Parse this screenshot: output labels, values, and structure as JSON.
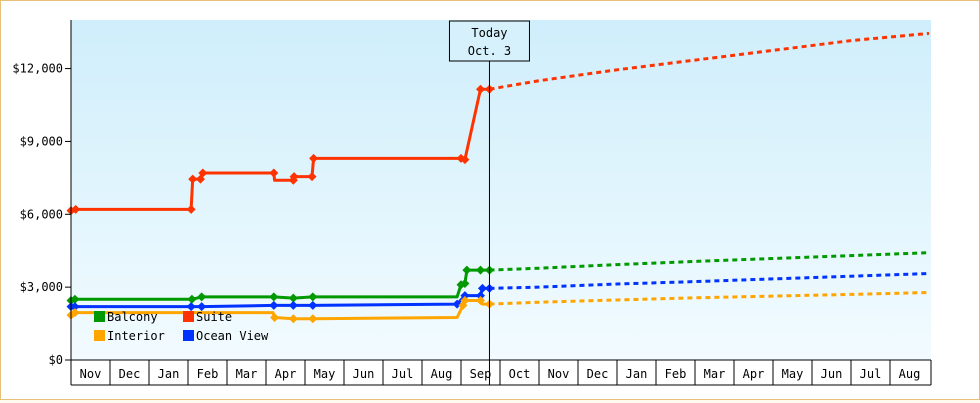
{
  "chart_data": {
    "type": "line",
    "title": "",
    "xlabel": "",
    "ylabel": "",
    "ylim": [
      0,
      14000
    ],
    "y_ticks": [
      {
        "value": 0,
        "label": "$0"
      },
      {
        "value": 3000,
        "label": "$3,000"
      },
      {
        "value": 6000,
        "label": "$6,000"
      },
      {
        "value": 9000,
        "label": "$9,000"
      },
      {
        "value": 12000,
        "label": "$12,000"
      }
    ],
    "x_months": [
      "Nov",
      "Dec",
      "Jan",
      "Feb",
      "Mar",
      "Apr",
      "May",
      "Jun",
      "Jul",
      "Aug",
      "Sep",
      "Oct",
      "Nov",
      "Dec",
      "Jan",
      "Feb",
      "Mar",
      "Apr",
      "May",
      "Jun",
      "Jul",
      "Aug"
    ],
    "today_marker": {
      "line1": "Today",
      "line2": "Oct. 3",
      "x": 10.73
    },
    "legend": {
      "placement": "bottom-left",
      "entries": [
        "Balcony",
        "Suite",
        "Interior",
        "Ocean View"
      ]
    },
    "series": [
      {
        "name": "Suite",
        "color": "#ff3300",
        "points": [
          [
            0.0,
            6150
          ],
          [
            0.12,
            6200
          ],
          [
            3.08,
            6200
          ],
          [
            3.12,
            7450
          ],
          [
            3.32,
            7450
          ],
          [
            3.38,
            7700
          ],
          [
            5.2,
            7700
          ],
          [
            5.22,
            7400
          ],
          [
            5.7,
            7400
          ],
          [
            5.72,
            7550
          ],
          [
            6.18,
            7550
          ],
          [
            6.22,
            8300
          ],
          [
            10.0,
            8300
          ],
          [
            10.1,
            8250
          ],
          [
            10.5,
            11150
          ],
          [
            10.73,
            11150
          ]
        ],
        "projection": [
          [
            10.73,
            11150
          ],
          [
            12,
            11500
          ],
          [
            14,
            11950
          ],
          [
            16,
            12350
          ],
          [
            18,
            12750
          ],
          [
            20,
            13150
          ],
          [
            22,
            13450
          ]
        ]
      },
      {
        "name": "Balcony",
        "color": "#009900",
        "points": [
          [
            0.0,
            2450
          ],
          [
            0.1,
            2500
          ],
          [
            3.1,
            2500
          ],
          [
            3.35,
            2600
          ],
          [
            5.2,
            2600
          ],
          [
            5.7,
            2550
          ],
          [
            6.2,
            2600
          ],
          [
            9.9,
            2600
          ],
          [
            10.0,
            3100
          ],
          [
            10.1,
            3150
          ],
          [
            10.15,
            3700
          ],
          [
            10.73,
            3700
          ]
        ],
        "projection": [
          [
            10.73,
            3700
          ],
          [
            12,
            3780
          ],
          [
            14,
            3930
          ],
          [
            16,
            4060
          ],
          [
            18,
            4180
          ],
          [
            20,
            4300
          ],
          [
            22,
            4420
          ]
        ]
      },
      {
        "name": "Ocean View",
        "color": "#0033ff",
        "points": [
          [
            0.0,
            2200
          ],
          [
            0.1,
            2200
          ],
          [
            3.08,
            2200
          ],
          [
            3.35,
            2200
          ],
          [
            5.2,
            2250
          ],
          [
            5.7,
            2250
          ],
          [
            6.2,
            2250
          ],
          [
            9.9,
            2300
          ],
          [
            10.1,
            2650
          ],
          [
            10.5,
            2650
          ],
          [
            10.55,
            2950
          ],
          [
            10.73,
            2950
          ]
        ],
        "projection": [
          [
            10.73,
            2950
          ],
          [
            12,
            3000
          ],
          [
            14,
            3130
          ],
          [
            16,
            3230
          ],
          [
            18,
            3340
          ],
          [
            20,
            3450
          ],
          [
            22,
            3560
          ]
        ]
      },
      {
        "name": "Interior",
        "color": "#ffa500",
        "points": [
          [
            0.0,
            1850
          ],
          [
            0.1,
            1950
          ],
          [
            3.1,
            1950
          ],
          [
            5.18,
            1950
          ],
          [
            5.22,
            1750
          ],
          [
            5.7,
            1700
          ],
          [
            6.2,
            1700
          ],
          [
            9.9,
            1750
          ],
          [
            10.05,
            2250
          ],
          [
            10.1,
            2450
          ],
          [
            10.5,
            2450
          ],
          [
            10.55,
            2300
          ],
          [
            10.73,
            2300
          ]
        ],
        "projection": [
          [
            10.73,
            2300
          ],
          [
            12,
            2380
          ],
          [
            14,
            2470
          ],
          [
            16,
            2560
          ],
          [
            18,
            2630
          ],
          [
            20,
            2700
          ],
          [
            22,
            2780
          ]
        ]
      }
    ],
    "markers": {
      "Suite": [
        0.0,
        0.12,
        3.08,
        3.12,
        3.32,
        3.38,
        5.2,
        5.7,
        5.72,
        6.18,
        6.22,
        10.0,
        10.1,
        10.5,
        10.73
      ],
      "Balcony": [
        0.0,
        0.1,
        3.1,
        3.35,
        5.2,
        5.7,
        6.2,
        10.0,
        10.1,
        10.15,
        10.5,
        10.73
      ],
      "Ocean View": [
        0.0,
        0.1,
        3.08,
        3.35,
        5.2,
        5.7,
        6.2,
        9.9,
        10.1,
        10.5,
        10.55,
        10.73
      ],
      "Interior": [
        0.0,
        0.1,
        5.22,
        5.7,
        6.2,
        10.05,
        10.1,
        10.5,
        10.73
      ]
    }
  }
}
